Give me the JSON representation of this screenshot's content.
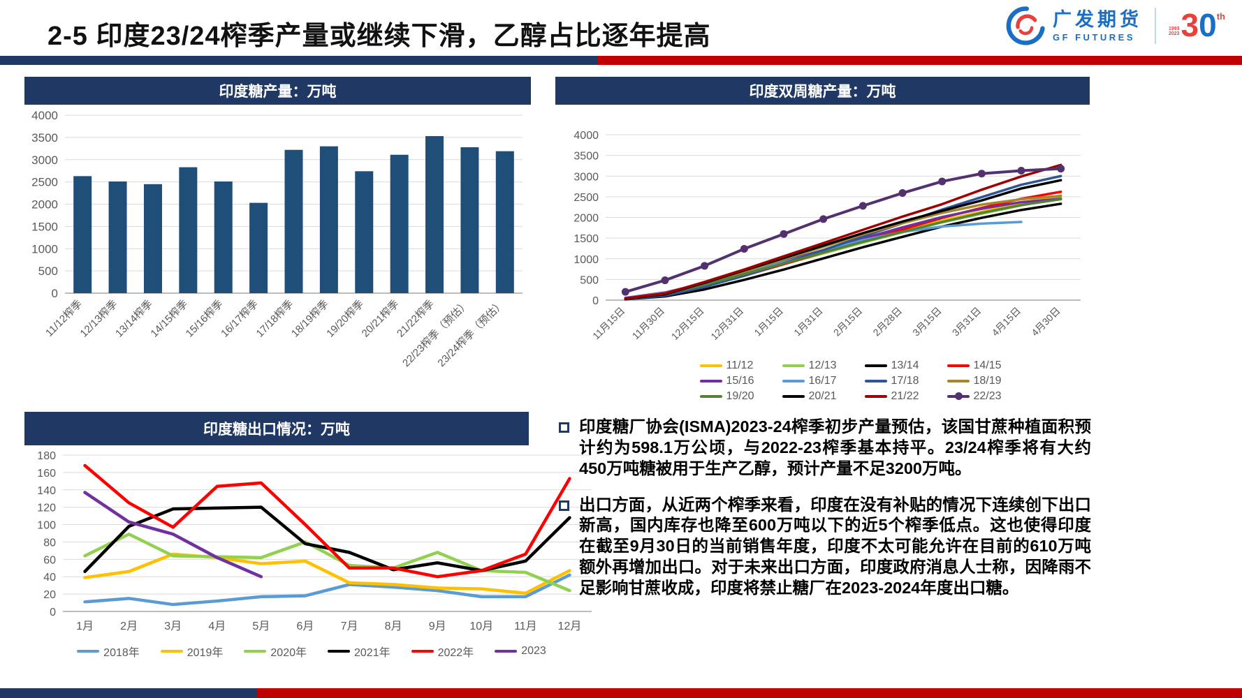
{
  "header": {
    "title": "2-5 印度23/24榨季产量或继续下滑，乙醇占比逐年提高",
    "logo": {
      "cn": "广发期货",
      "en": "GF FUTURES",
      "years_top": "1993",
      "years_bottom": "2023",
      "three": "3",
      "zero": "0",
      "th": "th"
    }
  },
  "colors": {
    "navy": "#1F3864",
    "red": "#C00000",
    "bar": "#1F4E79"
  },
  "chart_data": [
    {
      "id": "production",
      "type": "bar",
      "title": "印度糖产量：万吨",
      "categories": [
        "11/12榨季",
        "12/13榨季",
        "13/14榨季",
        "14/15榨季",
        "15/16榨季",
        "16/17榨季",
        "17/18榨季",
        "18/19榨季",
        "19/20榨季",
        "20/21榨季",
        "21/22榨季",
        "22/23榨季（预估）",
        "23/24榨季（预估）"
      ],
      "values": [
        2630,
        2510,
        2450,
        2830,
        2510,
        2030,
        3220,
        3300,
        2740,
        3110,
        3530,
        3280,
        3190
      ],
      "ylim": [
        0,
        4000
      ],
      "ytick": 500,
      "grid": true,
      "bar_color": "#1F4E79"
    },
    {
      "id": "biweekly",
      "type": "line",
      "title": "印度双周糖产量：万吨",
      "x": [
        "11月15日",
        "11月30日",
        "12月15日",
        "12月31日",
        "1月15日",
        "1月31日",
        "2月15日",
        "2月28日",
        "3月15日",
        "3月31日",
        "4月15日",
        "4月30日"
      ],
      "ylim": [
        0,
        4000
      ],
      "ytick": 500,
      "grid": true,
      "legend_position": "bottom",
      "series": [
        {
          "name": "11/12",
          "color": "#FFC000",
          "values": [
            40,
            150,
            360,
            620,
            890,
            1150,
            1430,
            1690,
            1930,
            2140,
            2350,
            2530
          ]
        },
        {
          "name": "12/13",
          "color": "#92D050",
          "values": [
            35,
            140,
            350,
            600,
            870,
            1130,
            1390,
            1640,
            1880,
            2090,
            2290,
            2470
          ]
        },
        {
          "name": "13/14",
          "color": "#000000",
          "values": [
            20,
            90,
            260,
            490,
            740,
            1010,
            1280,
            1530,
            1780,
            1990,
            2180,
            2330
          ]
        },
        {
          "name": "14/15",
          "color": "#FF0000",
          "values": [
            30,
            130,
            330,
            590,
            870,
            1150,
            1440,
            1710,
            1990,
            2230,
            2450,
            2620
          ]
        },
        {
          "name": "15/16",
          "color": "#7030A0",
          "values": [
            55,
            185,
            410,
            670,
            940,
            1210,
            1490,
            1760,
            2010,
            2210,
            2370,
            2450
          ]
        },
        {
          "name": "16/17",
          "color": "#5B9BD5",
          "values": [
            50,
            170,
            390,
            640,
            920,
            1190,
            1450,
            1650,
            1780,
            1850,
            1890,
            null
          ]
        },
        {
          "name": "17/18",
          "color": "#2F5597",
          "values": [
            25,
            110,
            320,
            590,
            890,
            1210,
            1540,
            1860,
            2190,
            2490,
            2790,
            3000
          ]
        },
        {
          "name": "18/19",
          "color": "#A6882B",
          "values": [
            45,
            170,
            410,
            690,
            990,
            1290,
            1590,
            1860,
            2110,
            2310,
            2440,
            2520
          ]
        },
        {
          "name": "19/20",
          "color": "#538135",
          "values": [
            40,
            150,
            370,
            630,
            890,
            1150,
            1410,
            1650,
            1890,
            2110,
            2300,
            2440
          ]
        },
        {
          "name": "20/21",
          "color": "#000000",
          "values": [
            35,
            140,
            420,
            720,
            1020,
            1320,
            1620,
            1900,
            2160,
            2410,
            2700,
            2900
          ]
        },
        {
          "name": "21/22",
          "color": "#A00000",
          "values": [
            45,
            160,
            440,
            740,
            1060,
            1380,
            1700,
            2020,
            2320,
            2670,
            2990,
            3270
          ]
        },
        {
          "name": "22/23",
          "color": "#53316F",
          "marker": true,
          "values": [
            200,
            480,
            830,
            1240,
            1600,
            1960,
            2280,
            2590,
            2870,
            3060,
            3130,
            3180
          ]
        }
      ]
    },
    {
      "id": "exports",
      "type": "line",
      "title": "印度糖出口情况：万吨",
      "x": [
        "1月",
        "2月",
        "3月",
        "4月",
        "5月",
        "6月",
        "7月",
        "8月",
        "9月",
        "10月",
        "11月",
        "12月"
      ],
      "ylim": [
        0,
        180
      ],
      "ytick": 20,
      "grid": true,
      "legend_position": "bottom",
      "series": [
        {
          "name": "2018年",
          "color": "#5B9BD5",
          "values": [
            11,
            15,
            8,
            12,
            17,
            18,
            31,
            28,
            24,
            17,
            17,
            42
          ]
        },
        {
          "name": "2019年",
          "color": "#FFC000",
          "values": [
            39,
            46,
            66,
            62,
            55,
            58,
            33,
            31,
            27,
            26,
            21,
            47
          ]
        },
        {
          "name": "2020年",
          "color": "#92D050",
          "values": [
            64,
            89,
            64,
            63,
            62,
            80,
            53,
            50,
            68,
            47,
            45,
            24
          ]
        },
        {
          "name": "2021年",
          "color": "#000000",
          "values": [
            46,
            98,
            118,
            119,
            120,
            78,
            68,
            48,
            56,
            47,
            58,
            108
          ]
        },
        {
          "name": "2022年",
          "color": "#FF0000",
          "values": [
            168,
            125,
            97,
            144,
            148,
            100,
            50,
            50,
            40,
            47,
            66,
            153
          ]
        },
        {
          "name": "2023",
          "color": "#7030A0",
          "values": [
            137,
            103,
            89,
            62,
            40,
            null,
            null,
            null,
            null,
            null,
            null,
            null
          ]
        }
      ]
    }
  ],
  "bullets": [
    {
      "text": "印度糖厂协会(ISMA)2023-24榨季初步产量预估，该国甘蔗种植面积预计约为598.1万公顷，与2022-23榨季基本持平。23/24榨季将有大约450万吨糖被用于生产乙醇，预计产量不足3200万吨。"
    },
    {
      "text": "出口方面，从近两个榨季来看，印度在没有补贴的情况下连续创下出口新高，国内库存也降至600万吨以下的近5个榨季低点。这也使得印度在截至9月30日的当前销售年度，印度不太可能允许在目前的610万吨额外再增加出口。对于未来出口方面，印度政府消息人士称，因降雨不足影响甘蔗收成，印度将禁止糖厂在2023-2024年度出口糖。"
    }
  ]
}
